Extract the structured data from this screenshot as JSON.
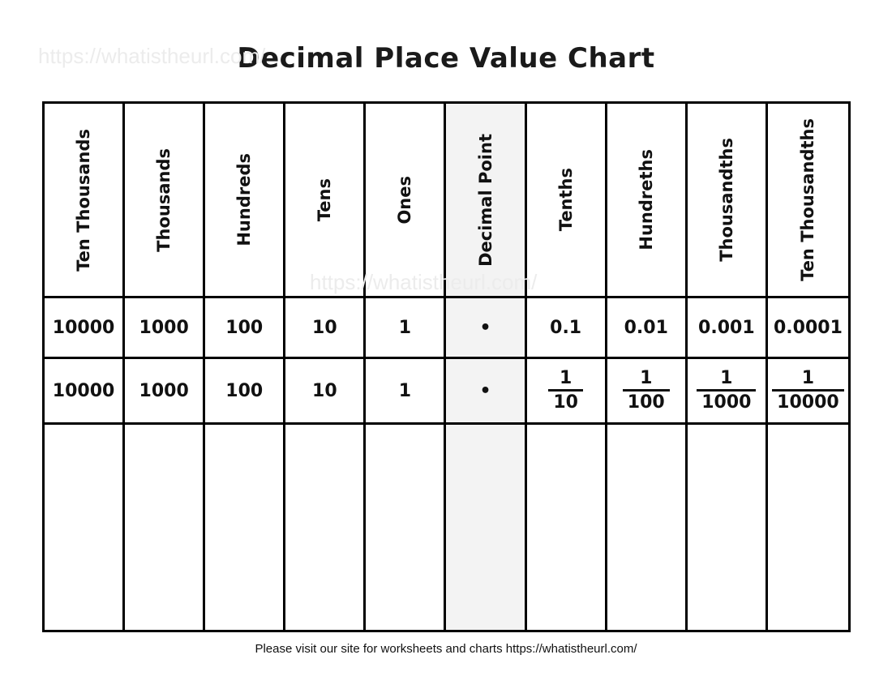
{
  "title": "Decimal Place Value Chart",
  "watermark": "https://whatistheurl.com/",
  "columns": [
    "Ten Thousands",
    "Thousands",
    "Hundreds",
    "Tens",
    "Ones",
    "Decimal Point",
    "Tenths",
    "Hundreths",
    "Thousandths",
    "Ten Thousandths"
  ],
  "decimal_row": [
    "10000",
    "1000",
    "100",
    "10",
    "1",
    "•",
    "0.1",
    "0.01",
    "0.001",
    "0.0001"
  ],
  "fraction_row": [
    {
      "value": "10000"
    },
    {
      "value": "1000"
    },
    {
      "value": "100"
    },
    {
      "value": "10"
    },
    {
      "value": "1"
    },
    {
      "value": "•"
    },
    {
      "num": "1",
      "den": "10"
    },
    {
      "num": "1",
      "den": "100"
    },
    {
      "num": "1",
      "den": "1000"
    },
    {
      "num": "1",
      "den": "10000"
    }
  ],
  "highlight_color": "#f3f3f3",
  "footer": "Please visit our site for worksheets and charts https://whatistheurl.com/"
}
